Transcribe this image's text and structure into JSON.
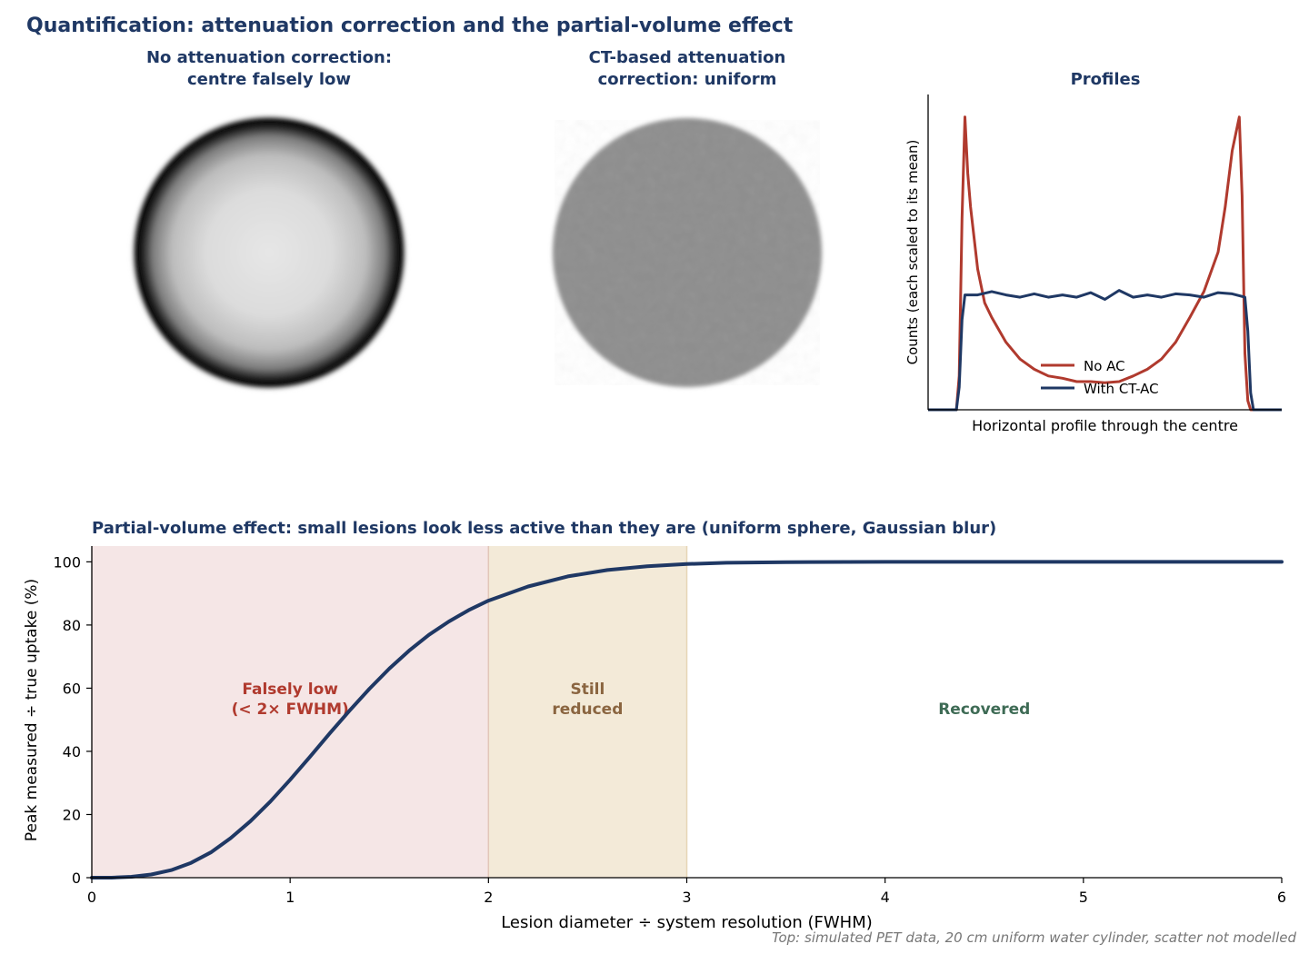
{
  "title": "Quantification: attenuation correction and the partial-volume effect",
  "panels": {
    "no_ac": {
      "title": "No attenuation correction:\ncentre falsely low"
    },
    "ct_ac": {
      "title": "CT-based attenuation\ncorrection: uniform"
    },
    "profiles": {
      "title": "Profiles"
    },
    "pve": {
      "title": "Partial-volume effect: small lesions look less active than they are (uniform sphere, Gaussian blur)"
    }
  },
  "footnote": "Top: simulated PET data, 20 cm uniform water cylinder, scatter not modelled",
  "colors": {
    "title": "#1f3864",
    "no_ac": "#b03a2e",
    "ct_ac": "#1f3864",
    "red_zone": "#f5e6e6",
    "tan_zone": "#f3ead8",
    "red_text": "#b03a2e",
    "tan_text": "#8a6540",
    "green_text": "#3e6b55"
  },
  "chart_data": [
    {
      "type": "line",
      "title": "Profiles",
      "xlabel": "Horizontal profile through the centre",
      "ylabel": "Counts (each scaled to its mean)",
      "xlim": [
        -1.25,
        1.25
      ],
      "ylim": [
        0,
        2.8
      ],
      "ticks_shown": false,
      "legend_position": "lower-center",
      "series": [
        {
          "name": "No AC",
          "x": [
            -1.25,
            -1.05,
            -1.03,
            -1.01,
            -0.99,
            -0.97,
            -0.95,
            -0.9,
            -0.85,
            -0.8,
            -0.7,
            -0.6,
            -0.5,
            -0.4,
            -0.3,
            -0.2,
            -0.1,
            0,
            0.1,
            0.2,
            0.3,
            0.4,
            0.5,
            0.6,
            0.7,
            0.8,
            0.85,
            0.9,
            0.95,
            0.97,
            0.99,
            1.01,
            1.03,
            1.05,
            1.25
          ],
          "y": [
            0,
            0,
            0.3,
            1.7,
            2.6,
            2.1,
            1.8,
            1.25,
            0.95,
            0.82,
            0.6,
            0.45,
            0.36,
            0.3,
            0.28,
            0.25,
            0.25,
            0.24,
            0.25,
            0.3,
            0.36,
            0.45,
            0.6,
            0.82,
            1.05,
            1.4,
            1.8,
            2.3,
            2.6,
            1.9,
            0.5,
            0.08,
            0,
            0,
            0
          ]
        },
        {
          "name": "With CT-AC",
          "x": [
            -1.25,
            -1.05,
            -1.03,
            -1.01,
            -0.99,
            -0.9,
            -0.8,
            -0.7,
            -0.6,
            -0.5,
            -0.4,
            -0.3,
            -0.2,
            -0.1,
            0,
            0.1,
            0.2,
            0.3,
            0.4,
            0.5,
            0.6,
            0.7,
            0.8,
            0.9,
            0.99,
            1.01,
            1.03,
            1.05,
            1.25
          ],
          "y": [
            0,
            0,
            0.2,
            0.8,
            1.02,
            1.02,
            1.05,
            1.02,
            1.0,
            1.03,
            1.0,
            1.02,
            1.0,
            1.04,
            0.98,
            1.06,
            1.0,
            1.02,
            1.0,
            1.03,
            1.02,
            1.0,
            1.04,
            1.03,
            1.0,
            0.7,
            0.15,
            0,
            0
          ]
        }
      ]
    },
    {
      "type": "line",
      "title": "Partial-volume effect: small lesions look less active than they are (uniform sphere, Gaussian blur)",
      "xlabel": "Lesion diameter ÷ system resolution (FWHM)",
      "ylabel": "Peak measured ÷ true uptake (%)",
      "xlim": [
        0,
        6
      ],
      "ylim": [
        0,
        105
      ],
      "x_ticks": [
        0,
        1,
        2,
        3,
        4,
        5,
        6
      ],
      "y_ticks": [
        0,
        20,
        40,
        60,
        80,
        100
      ],
      "series": [
        {
          "name": "",
          "x": [
            0,
            0.1,
            0.2,
            0.3,
            0.4,
            0.5,
            0.6,
            0.7,
            0.8,
            0.9,
            1.0,
            1.1,
            1.2,
            1.3,
            1.4,
            1.5,
            1.6,
            1.7,
            1.8,
            1.9,
            2.0,
            2.2,
            2.4,
            2.6,
            2.8,
            3.0,
            3.2,
            3.5,
            4.0,
            5.0,
            6.0
          ],
          "y": [
            0,
            0.0,
            0.3,
            1.0,
            2.4,
            4.7,
            8.0,
            12.5,
            17.9,
            24.1,
            31.0,
            38.3,
            45.7,
            52.9,
            59.8,
            66.2,
            71.9,
            76.9,
            81.1,
            84.7,
            87.7,
            92.2,
            95.4,
            97.4,
            98.6,
            99.3,
            99.7,
            99.9,
            100,
            100,
            100
          ]
        }
      ],
      "regions": [
        {
          "x0": 0,
          "x1": 2,
          "label": "Falsely low\n(< 2× FWHM)"
        },
        {
          "x0": 2,
          "x1": 3,
          "label": "Still\nreduced"
        },
        {
          "x0": 3,
          "x1": 6,
          "label": "Recovered"
        }
      ]
    }
  ]
}
